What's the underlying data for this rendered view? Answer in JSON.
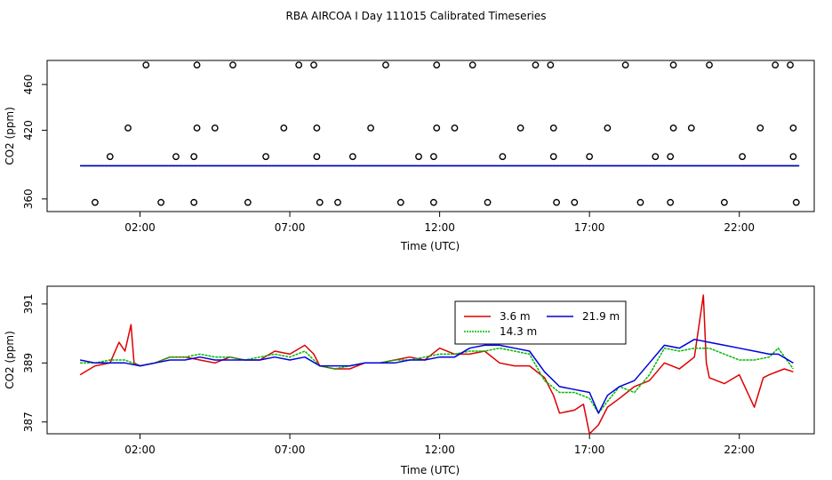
{
  "title": "RBA AIRCOA I  Day 111015  Calibrated Timeseries",
  "colors": {
    "red": "#dd0000",
    "green": "#00bb00",
    "blue": "#0000dd"
  },
  "chart_data": [
    {
      "type": "scatter",
      "xlabel": "Time (UTC)",
      "ylabel": "CO2 (ppm)",
      "x_unit": "hours UTC",
      "xlim": [
        -1.1,
        24.5
      ],
      "ylim": [
        349,
        481
      ],
      "x_ticks": [
        {
          "value": 2,
          "label": "02:00"
        },
        {
          "value": 7,
          "label": "07:00"
        },
        {
          "value": 12,
          "label": "12:00"
        },
        {
          "value": 17,
          "label": "17:00"
        },
        {
          "value": 22,
          "label": "22:00"
        }
      ],
      "y_ticks": [
        {
          "value": 360,
          "label": "360"
        },
        {
          "value": 420,
          "label": "420"
        },
        {
          "value": 460,
          "label": "460"
        }
      ],
      "points": [
        {
          "x": 0.5,
          "y": 357
        },
        {
          "x": 1.0,
          "y": 397
        },
        {
          "x": 1.6,
          "y": 422
        },
        {
          "x": 2.2,
          "y": 477
        },
        {
          "x": 2.7,
          "y": 357
        },
        {
          "x": 3.2,
          "y": 397
        },
        {
          "x": 3.8,
          "y": 397
        },
        {
          "x": 3.8,
          "y": 357
        },
        {
          "x": 3.9,
          "y": 422
        },
        {
          "x": 3.9,
          "y": 477
        },
        {
          "x": 4.5,
          "y": 422
        },
        {
          "x": 5.1,
          "y": 477
        },
        {
          "x": 5.6,
          "y": 357
        },
        {
          "x": 6.2,
          "y": 397
        },
        {
          "x": 6.8,
          "y": 422
        },
        {
          "x": 7.3,
          "y": 477
        },
        {
          "x": 7.8,
          "y": 477
        },
        {
          "x": 7.9,
          "y": 422
        },
        {
          "x": 7.9,
          "y": 397
        },
        {
          "x": 8.0,
          "y": 357
        },
        {
          "x": 8.6,
          "y": 357
        },
        {
          "x": 9.1,
          "y": 397
        },
        {
          "x": 9.7,
          "y": 422
        },
        {
          "x": 10.2,
          "y": 477
        },
        {
          "x": 10.7,
          "y": 357
        },
        {
          "x": 11.3,
          "y": 397
        },
        {
          "x": 11.8,
          "y": 357
        },
        {
          "x": 11.8,
          "y": 397
        },
        {
          "x": 11.9,
          "y": 422
        },
        {
          "x": 11.9,
          "y": 477
        },
        {
          "x": 12.5,
          "y": 422
        },
        {
          "x": 13.1,
          "y": 477
        },
        {
          "x": 13.6,
          "y": 357
        },
        {
          "x": 14.1,
          "y": 397
        },
        {
          "x": 14.7,
          "y": 422
        },
        {
          "x": 15.2,
          "y": 477
        },
        {
          "x": 15.7,
          "y": 477
        },
        {
          "x": 15.8,
          "y": 422
        },
        {
          "x": 15.8,
          "y": 397
        },
        {
          "x": 15.9,
          "y": 357
        },
        {
          "x": 16.5,
          "y": 357
        },
        {
          "x": 17.0,
          "y": 397
        },
        {
          "x": 17.6,
          "y": 422
        },
        {
          "x": 18.2,
          "y": 477
        },
        {
          "x": 18.7,
          "y": 357
        },
        {
          "x": 19.2,
          "y": 397
        },
        {
          "x": 19.7,
          "y": 357
        },
        {
          "x": 19.7,
          "y": 397
        },
        {
          "x": 19.8,
          "y": 422
        },
        {
          "x": 19.8,
          "y": 477
        },
        {
          "x": 20.4,
          "y": 422
        },
        {
          "x": 21.0,
          "y": 477
        },
        {
          "x": 21.5,
          "y": 357
        },
        {
          "x": 22.1,
          "y": 397
        },
        {
          "x": 22.7,
          "y": 422
        },
        {
          "x": 23.2,
          "y": 477
        },
        {
          "x": 23.7,
          "y": 477
        },
        {
          "x": 23.8,
          "y": 422
        },
        {
          "x": 23.8,
          "y": 397
        },
        {
          "x": 23.9,
          "y": 357
        }
      ],
      "series": [
        {
          "color": "red",
          "x": [
            0,
            24
          ],
          "y": [
            389,
            389
          ]
        },
        {
          "color": "green",
          "x": [
            0,
            24
          ],
          "y": [
            389,
            389
          ]
        },
        {
          "color": "blue",
          "x": [
            0,
            24
          ],
          "y": [
            389,
            389
          ]
        }
      ]
    },
    {
      "type": "line",
      "xlabel": "Time (UTC)",
      "ylabel": "CO2 (ppm)",
      "x_unit": "hours UTC",
      "xlim": [
        -1.1,
        24.5
      ],
      "ylim": [
        386.6,
        391.6
      ],
      "x_ticks": [
        {
          "value": 2,
          "label": "02:00"
        },
        {
          "value": 7,
          "label": "07:00"
        },
        {
          "value": 12,
          "label": "12:00"
        },
        {
          "value": 17,
          "label": "17:00"
        },
        {
          "value": 22,
          "label": "22:00"
        }
      ],
      "y_ticks": [
        {
          "value": 387,
          "label": "387"
        },
        {
          "value": 389,
          "label": "389"
        },
        {
          "value": 391,
          "label": "391"
        }
      ],
      "legend": {
        "position": "top-center",
        "entries": [
          {
            "label": "3.6 m",
            "color": "red"
          },
          {
            "label": "21.9 m",
            "color": "blue"
          },
          {
            "label": "14.3 m",
            "color": "green"
          }
        ]
      },
      "series": [
        {
          "name": "3.6 m",
          "color": "red",
          "x": [
            0,
            0.5,
            1,
            1.3,
            1.5,
            1.7,
            1.8,
            2,
            2.5,
            3,
            3.5,
            4,
            4.5,
            5,
            5.5,
            6,
            6.5,
            7,
            7.5,
            7.8,
            8,
            8.5,
            9,
            9.5,
            10,
            10.5,
            11,
            11.5,
            12,
            12.5,
            13,
            13.5,
            14,
            14.5,
            15,
            15.5,
            15.8,
            16,
            16.5,
            16.8,
            17,
            17.3,
            17.6,
            18,
            18.5,
            19,
            19.5,
            20,
            20.5,
            20.8,
            20.9,
            21,
            21.5,
            22,
            22.5,
            22.8,
            23,
            23.5,
            23.8
          ],
          "y": [
            388.6,
            388.9,
            389.0,
            389.7,
            389.4,
            390.3,
            389.0,
            388.9,
            389.0,
            389.2,
            389.2,
            389.1,
            389.0,
            389.2,
            389.1,
            389.1,
            389.4,
            389.3,
            389.6,
            389.3,
            388.9,
            388.8,
            388.8,
            389.0,
            389.0,
            389.1,
            389.2,
            389.1,
            389.5,
            389.3,
            389.3,
            389.4,
            389.0,
            388.9,
            388.9,
            388.5,
            387.9,
            387.3,
            387.4,
            387.6,
            386.6,
            386.9,
            387.5,
            387.8,
            388.2,
            388.4,
            389.0,
            388.8,
            389.2,
            391.3,
            389.0,
            388.5,
            388.3,
            388.6,
            387.5,
            388.5,
            388.6,
            388.8,
            388.7
          ]
        },
        {
          "name": "14.3 m",
          "color": "green",
          "x": [
            0,
            0.5,
            1,
            1.5,
            2,
            2.5,
            3,
            3.5,
            4,
            4.5,
            5,
            5.5,
            6,
            6.5,
            7,
            7.5,
            8,
            8.5,
            9,
            9.5,
            10,
            10.5,
            11,
            11.5,
            12,
            12.5,
            13,
            13.5,
            14,
            14.5,
            15,
            15.5,
            16,
            16.5,
            17,
            17.3,
            17.6,
            18,
            18.5,
            19,
            19.5,
            20,
            20.5,
            21,
            21.5,
            22,
            22.5,
            23,
            23.3,
            23.8
          ],
          "y": [
            389.0,
            389.0,
            389.1,
            389.1,
            388.9,
            389.0,
            389.2,
            389.2,
            389.3,
            389.2,
            389.2,
            389.1,
            389.2,
            389.3,
            389.2,
            389.4,
            388.9,
            388.8,
            388.9,
            389.0,
            389.0,
            389.1,
            389.1,
            389.2,
            389.3,
            389.3,
            389.4,
            389.4,
            389.5,
            389.4,
            389.3,
            388.4,
            388.0,
            388.0,
            387.8,
            387.3,
            387.7,
            388.2,
            388.0,
            388.6,
            389.5,
            389.4,
            389.5,
            389.5,
            389.3,
            389.1,
            389.1,
            389.2,
            389.5,
            388.8
          ]
        },
        {
          "name": "21.9 m",
          "color": "blue",
          "x": [
            0,
            0.5,
            1,
            1.5,
            2,
            2.5,
            3,
            3.5,
            4,
            4.5,
            5,
            5.5,
            6,
            6.5,
            7,
            7.5,
            8,
            8.5,
            9,
            9.5,
            10,
            10.5,
            11,
            11.5,
            12,
            12.5,
            13,
            13.5,
            14,
            14.5,
            15,
            15.5,
            16,
            16.5,
            17,
            17.3,
            17.6,
            18,
            18.5,
            19,
            19.5,
            20,
            20.5,
            21,
            21.5,
            22,
            22.5,
            23,
            23.3,
            23.8
          ],
          "y": [
            389.1,
            389.0,
            389.0,
            389.0,
            388.9,
            389.0,
            389.1,
            389.1,
            389.2,
            389.1,
            389.1,
            389.1,
            389.1,
            389.2,
            389.1,
            389.2,
            388.9,
            388.9,
            388.9,
            389.0,
            389.0,
            389.0,
            389.1,
            389.1,
            389.2,
            389.2,
            389.5,
            389.6,
            389.6,
            389.5,
            389.4,
            388.7,
            388.2,
            388.1,
            388.0,
            387.3,
            387.9,
            388.2,
            388.4,
            389.0,
            389.6,
            389.5,
            389.8,
            389.7,
            389.6,
            389.5,
            389.4,
            389.3,
            389.3,
            389.0
          ]
        }
      ]
    }
  ]
}
